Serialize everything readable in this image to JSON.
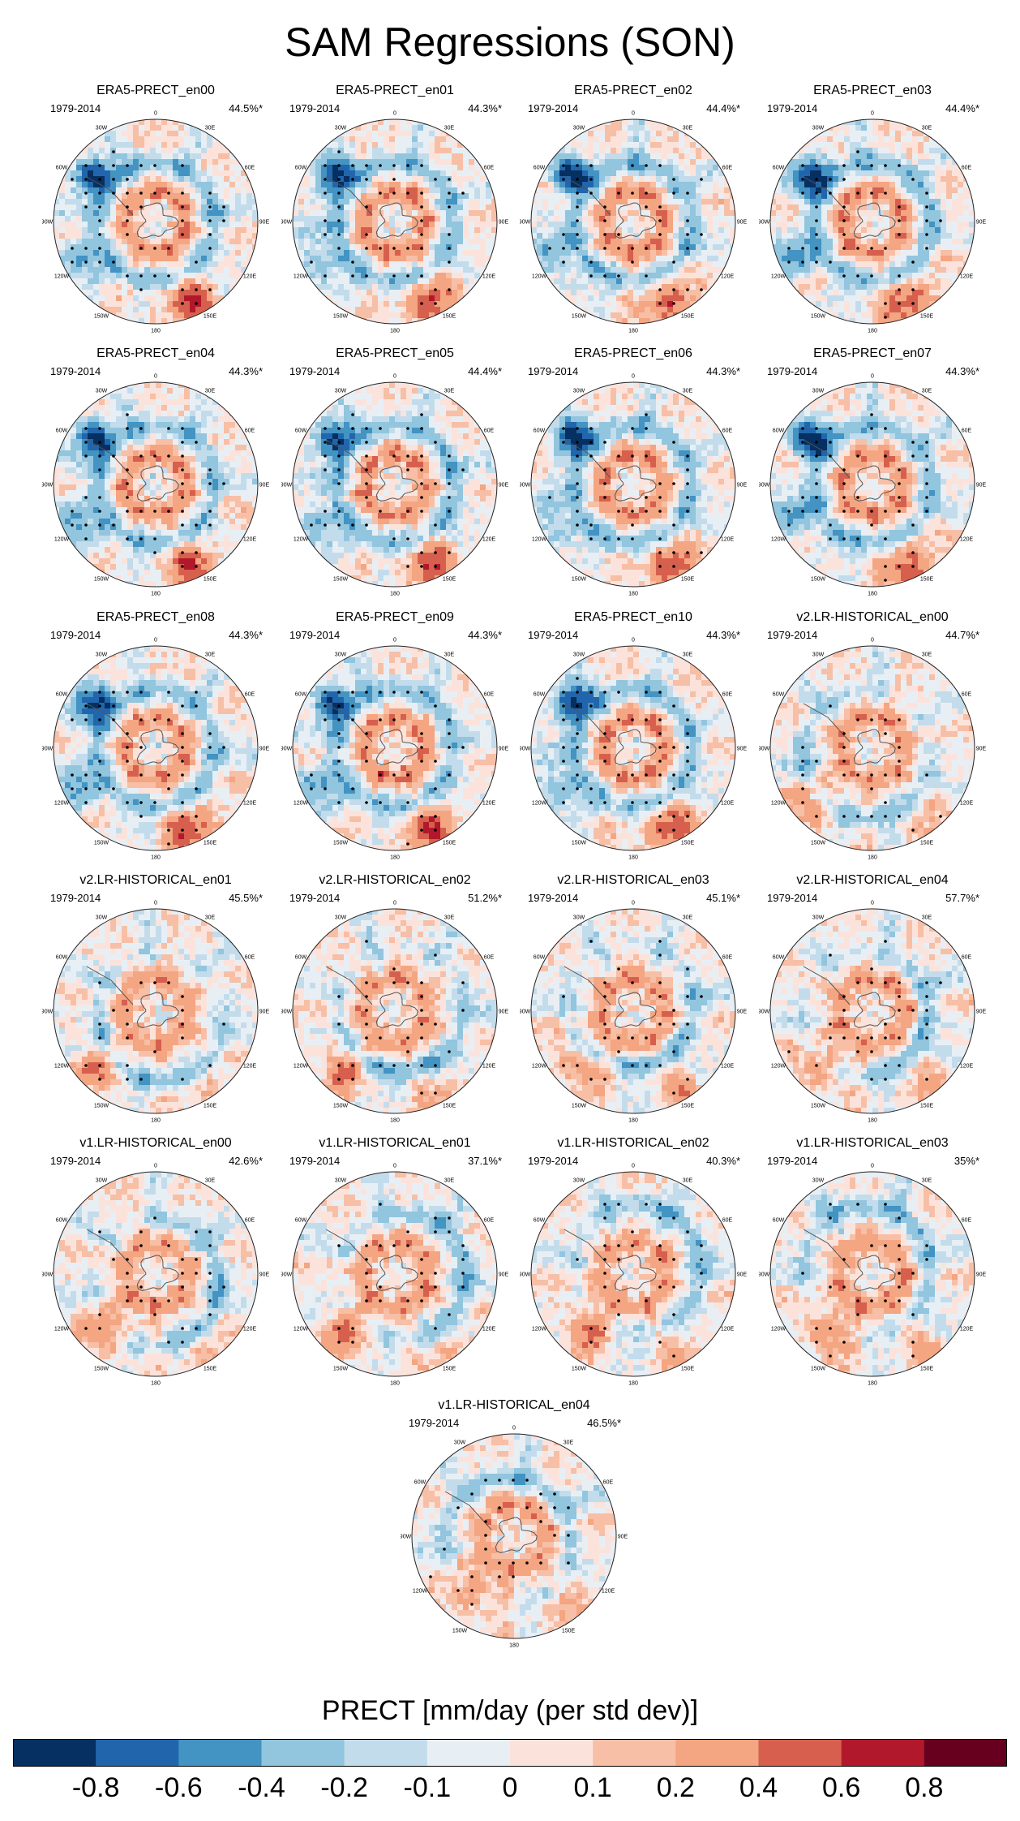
{
  "chart_data": {
    "type": "heatmap",
    "title": "SAM Regressions (SON)",
    "projection": "south-polar-stereographic",
    "variable": "PRECT",
    "colorbar": {
      "title": "PRECT [mm/day (per std dev)]",
      "tick_labels": [
        "-0.8",
        "-0.6",
        "-0.4",
        "-0.2",
        "-0.1",
        "0",
        "0.1",
        "0.2",
        "0.4",
        "0.6",
        "0.8"
      ],
      "colors": [
        "#053061",
        "#2166ac",
        "#4393c3",
        "#92c5de",
        "#c3dcec",
        "#e8eff4",
        "#fbe3dc",
        "#f7bfa6",
        "#f4a582",
        "#d6604d",
        "#b2182b",
        "#67001f"
      ]
    },
    "longitude_labels": [
      "0",
      "30E",
      "60E",
      "90E",
      "120E",
      "150E",
      "180",
      "150W",
      "120W",
      "90W",
      "60W",
      "30W"
    ],
    "panels": [
      {
        "title": "ERA5-PRECT_en00",
        "period": "1979-2014",
        "variance_pct": "44.5%*",
        "pattern": "obs"
      },
      {
        "title": "ERA5-PRECT_en01",
        "period": "1979-2014",
        "variance_pct": "44.3%*",
        "pattern": "obs"
      },
      {
        "title": "ERA5-PRECT_en02",
        "period": "1979-2014",
        "variance_pct": "44.4%*",
        "pattern": "obs"
      },
      {
        "title": "ERA5-PRECT_en03",
        "period": "1979-2014",
        "variance_pct": "44.4%*",
        "pattern": "obs"
      },
      {
        "title": "ERA5-PRECT_en04",
        "period": "1979-2014",
        "variance_pct": "44.3%*",
        "pattern": "obs"
      },
      {
        "title": "ERA5-PRECT_en05",
        "period": "1979-2014",
        "variance_pct": "44.4%*",
        "pattern": "obs"
      },
      {
        "title": "ERA5-PRECT_en06",
        "period": "1979-2014",
        "variance_pct": "44.3%*",
        "pattern": "obs"
      },
      {
        "title": "ERA5-PRECT_en07",
        "period": "1979-2014",
        "variance_pct": "44.3%*",
        "pattern": "obs"
      },
      {
        "title": "ERA5-PRECT_en08",
        "period": "1979-2014",
        "variance_pct": "44.3%*",
        "pattern": "obs"
      },
      {
        "title": "ERA5-PRECT_en09",
        "period": "1979-2014",
        "variance_pct": "44.3%*",
        "pattern": "obs"
      },
      {
        "title": "ERA5-PRECT_en10",
        "period": "1979-2014",
        "variance_pct": "44.3%*",
        "pattern": "obs"
      },
      {
        "title": "v2.LR-HISTORICAL_en00",
        "period": "1979-2014",
        "variance_pct": "44.7%*",
        "pattern": "model"
      },
      {
        "title": "v2.LR-HISTORICAL_en01",
        "period": "1979-2014",
        "variance_pct": "45.5%*",
        "pattern": "model"
      },
      {
        "title": "v2.LR-HISTORICAL_en02",
        "period": "1979-2014",
        "variance_pct": "51.2%*",
        "pattern": "model"
      },
      {
        "title": "v2.LR-HISTORICAL_en03",
        "period": "1979-2014",
        "variance_pct": "45.1%*",
        "pattern": "model"
      },
      {
        "title": "v2.LR-HISTORICAL_en04",
        "period": "1979-2014",
        "variance_pct": "57.7%*",
        "pattern": "model"
      },
      {
        "title": "v1.LR-HISTORICAL_en00",
        "period": "1979-2014",
        "variance_pct": "42.6%*",
        "pattern": "model"
      },
      {
        "title": "v1.LR-HISTORICAL_en01",
        "period": "1979-2014",
        "variance_pct": "37.1%*",
        "pattern": "model"
      },
      {
        "title": "v1.LR-HISTORICAL_en02",
        "period": "1979-2014",
        "variance_pct": "40.3%*",
        "pattern": "model"
      },
      {
        "title": "v1.LR-HISTORICAL_en03",
        "period": "1979-2014",
        "variance_pct": "35%*",
        "pattern": "model"
      },
      {
        "title": "v1.LR-HISTORICAL_en04",
        "period": "1979-2014",
        "variance_pct": "46.5%*",
        "pattern": "model"
      }
    ]
  }
}
